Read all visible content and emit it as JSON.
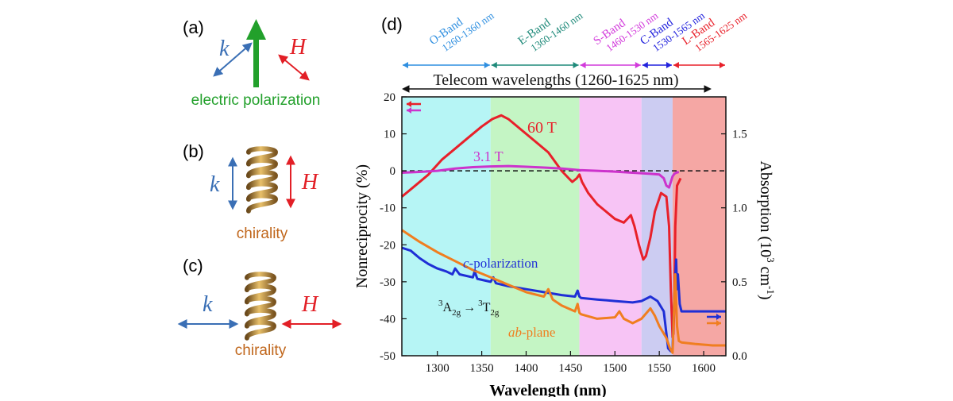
{
  "panels": {
    "a": {
      "label": "(a)",
      "k": "k",
      "H": "H",
      "caption": "electric polarization"
    },
    "b": {
      "label": "(b)",
      "k": "k",
      "H": "H",
      "caption": "chirality"
    },
    "c": {
      "label": "(c)",
      "k": "k",
      "H": "H",
      "caption": "chirality"
    },
    "d": {
      "label": "(d)"
    }
  },
  "colors": {
    "k_arrow": "#3a6fb5",
    "H_arrow": "#e21f26",
    "polarization": "#22a02b",
    "chirality_text": "#c0661b",
    "red": "#e8202a",
    "magenta": "#cc33cc",
    "blue": "#1f2fd6",
    "orange": "#f07e20"
  },
  "chart_data": {
    "type": "line",
    "xlabel": "Wavelength (nm)",
    "ylabel_left": "Nonreciprocity (%)",
    "ylabel_right": "Absorption (10",
    "ylabel_right_sup1": "3",
    "ylabel_right_mid": " cm",
    "ylabel_right_sup2": "-1",
    "ylabel_right_end": ")",
    "xlim": [
      1260,
      1625
    ],
    "ylim_left": [
      -50,
      20
    ],
    "ylim_right": [
      0.0,
      1.75
    ],
    "xticks": [
      1300,
      1350,
      1400,
      1450,
      1500,
      1550,
      1600
    ],
    "yticks_left": [
      20,
      10,
      0,
      -10,
      -20,
      -30,
      -40,
      -50
    ],
    "yticks_right": [
      0.0,
      0.5,
      1.0,
      1.5
    ],
    "telecom_label": "Telecom wavelengths (1260-1625 nm)",
    "bands": [
      {
        "name": "O-Band",
        "range": "1260-1360 nm",
        "start": 1260,
        "end": 1360,
        "fill": "#b6f5f5",
        "text": "#2f8fe0"
      },
      {
        "name": "E-Band",
        "range": "1360-1460 nm",
        "start": 1360,
        "end": 1460,
        "fill": "#c4f5c4",
        "text": "#1f8a7a"
      },
      {
        "name": "S-Band",
        "range": "1460-1530 nm",
        "start": 1460,
        "end": 1530,
        "fill": "#f7c4f5",
        "text": "#d23adb"
      },
      {
        "name": "C-Band",
        "range": "1530-1565 nm",
        "start": 1530,
        "end": 1565,
        "fill": "#ccccf2",
        "text": "#2222dd"
      },
      {
        "name": "L-Band",
        "range": "1565-1625 nm",
        "start": 1565,
        "end": 1625,
        "fill": "#f5a7a4",
        "text": "#e8202a"
      }
    ],
    "annotations": {
      "t60": "60 T",
      "t31": "3.1 T",
      "cpol_c": "c",
      "cpol_rest": "-polarization",
      "ab_italic": "ab",
      "ab_rest": "-plane",
      "trans_pre": "3",
      "trans_a": "A",
      "trans_a_sub": "2g",
      "trans_arrow": "→",
      "trans_t_pre": "3",
      "trans_t": "T",
      "trans_t_sub": "2g"
    },
    "series": [
      {
        "name": "60 T",
        "axis": "left",
        "color": "#e8202a",
        "x": [
          1260,
          1275,
          1290,
          1305,
          1320,
          1335,
          1350,
          1362,
          1372,
          1380,
          1395,
          1410,
          1425,
          1440,
          1448,
          1452,
          1457,
          1460,
          1463,
          1470,
          1480,
          1490,
          1500,
          1510,
          1518,
          1522,
          1527,
          1532,
          1535,
          1540,
          1545,
          1552,
          1558,
          1561,
          1563,
          1565,
          1566,
          1567,
          1568,
          1570,
          1572,
          1574
        ],
        "y": [
          -7,
          -4,
          -1,
          3,
          6,
          9,
          12,
          14,
          15,
          14,
          11,
          8,
          5,
          0,
          -2,
          -3,
          -2,
          -1,
          -3,
          -6,
          -9,
          -11,
          -13,
          -14,
          -12,
          -15,
          -20,
          -24,
          -23,
          -18,
          -11,
          -6,
          -7,
          -15,
          -32,
          -45,
          -44,
          -35,
          -15,
          -4,
          -3,
          -2
        ]
      },
      {
        "name": "3.1 T",
        "axis": "left",
        "color": "#cc33cc",
        "x": [
          1260,
          1280,
          1300,
          1320,
          1340,
          1360,
          1380,
          1400,
          1420,
          1440,
          1460,
          1480,
          1500,
          1520,
          1540,
          1550,
          1555,
          1558,
          1561,
          1563,
          1565,
          1567,
          1569,
          1572
        ],
        "y": [
          -0.5,
          -0.3,
          0,
          0.6,
          1,
          1.2,
          1.3,
          1.1,
          0.9,
          0.6,
          0.2,
          0,
          -0.2,
          -0.5,
          -0.8,
          -1,
          -2,
          -4,
          -4.5,
          -3,
          -1.5,
          -0.8,
          -0.5,
          -0.3
        ]
      },
      {
        "name": "c-polarization",
        "axis": "right",
        "color": "#1f2fd6",
        "x": [
          1260,
          1270,
          1280,
          1290,
          1300,
          1310,
          1317,
          1320,
          1325,
          1340,
          1342,
          1345,
          1360,
          1363,
          1366,
          1380,
          1400,
          1420,
          1440,
          1455,
          1458,
          1460,
          1462,
          1480,
          1500,
          1520,
          1530,
          1540,
          1548,
          1555,
          1560,
          1563,
          1565,
          1567,
          1569,
          1570,
          1571,
          1573,
          1575,
          1590,
          1610,
          1625
        ],
        "y": [
          0.73,
          0.71,
          0.66,
          0.62,
          0.59,
          0.57,
          0.55,
          0.59,
          0.55,
          0.53,
          0.57,
          0.52,
          0.5,
          0.53,
          0.49,
          0.47,
          0.45,
          0.43,
          0.41,
          0.4,
          0.44,
          0.4,
          0.39,
          0.38,
          0.37,
          0.36,
          0.37,
          0.4,
          0.37,
          0.3,
          0.05,
          0.03,
          0.05,
          0.4,
          0.65,
          0.45,
          0.55,
          0.35,
          0.3,
          0.3,
          0.3,
          0.3
        ]
      },
      {
        "name": "ab-plane",
        "axis": "right",
        "color": "#f07e20",
        "x": [
          1260,
          1280,
          1300,
          1320,
          1340,
          1360,
          1380,
          1400,
          1420,
          1425,
          1430,
          1440,
          1455,
          1458,
          1460,
          1462,
          1480,
          1500,
          1505,
          1510,
          1520,
          1530,
          1540,
          1545,
          1550,
          1558,
          1562,
          1565,
          1567,
          1568,
          1570,
          1572,
          1575,
          1590,
          1610,
          1625
        ],
        "y": [
          0.85,
          0.77,
          0.7,
          0.64,
          0.58,
          0.53,
          0.48,
          0.43,
          0.4,
          0.45,
          0.38,
          0.34,
          0.3,
          0.35,
          0.29,
          0.28,
          0.25,
          0.26,
          0.3,
          0.25,
          0.22,
          0.25,
          0.32,
          0.27,
          0.2,
          0.12,
          0.05,
          0.02,
          0.4,
          0.55,
          0.2,
          0.1,
          0.09,
          0.08,
          0.07,
          0.07
        ]
      }
    ]
  }
}
